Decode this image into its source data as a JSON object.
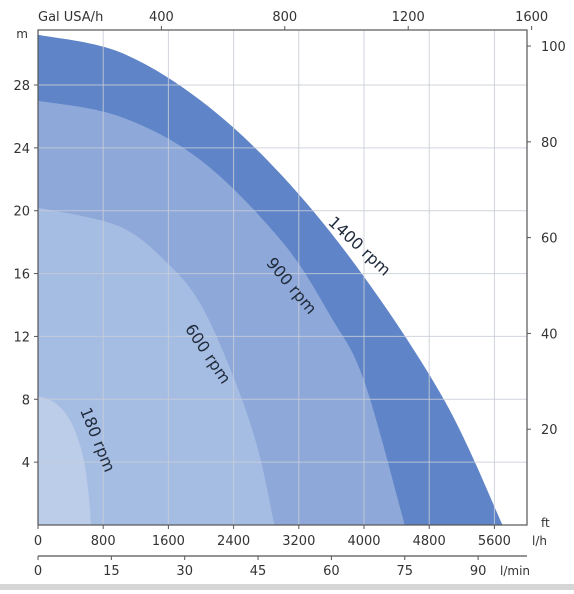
{
  "chart_data": {
    "type": "area",
    "x_primary": {
      "unit": "l/h",
      "ticks": [
        0,
        800,
        1600,
        2400,
        3200,
        4000,
        4800,
        5600
      ],
      "range": [
        0,
        6000
      ]
    },
    "x_secondary": {
      "unit": "l/min",
      "ticks": [
        0,
        15,
        30,
        45,
        60,
        75,
        90
      ]
    },
    "x_top": {
      "unit": "Gal USA/h",
      "ticks": [
        400,
        800,
        1200,
        1600
      ]
    },
    "y_left": {
      "unit": "m",
      "ticks": [
        4,
        8,
        12,
        16,
        20,
        24,
        28
      ],
      "range": [
        0,
        31.5
      ]
    },
    "y_right": {
      "unit": "ft",
      "ticks": [
        20,
        40,
        60,
        80,
        100
      ]
    },
    "grid": true,
    "series": [
      {
        "name": "1400 rpm",
        "color": "#5f84c7",
        "points": [
          [
            0,
            31.2
          ],
          [
            1000,
            30.1
          ],
          [
            2000,
            27.0
          ],
          [
            3000,
            22.2
          ],
          [
            4000,
            15.8
          ],
          [
            5000,
            7.8
          ],
          [
            5700,
            0
          ]
        ]
      },
      {
        "name": "900 rpm",
        "color": "#8ea8d9",
        "points": [
          [
            0,
            27.0
          ],
          [
            1000,
            26.0
          ],
          [
            2000,
            23.2
          ],
          [
            3000,
            18.0
          ],
          [
            3600,
            13.2
          ],
          [
            4000,
            9.2
          ],
          [
            4500,
            0
          ]
        ]
      },
      {
        "name": "600 rpm",
        "color": "#a6bde3",
        "points": [
          [
            0,
            20.2
          ],
          [
            1000,
            19.0
          ],
          [
            1600,
            16.6
          ],
          [
            2000,
            14.0
          ],
          [
            2400,
            9.4
          ],
          [
            2700,
            4.8
          ],
          [
            2900,
            0
          ]
        ]
      },
      {
        "name": "180 rpm",
        "color": "#bccde9",
        "points": [
          [
            0,
            8.2
          ],
          [
            200,
            7.8
          ],
          [
            400,
            6.6
          ],
          [
            550,
            4.4
          ],
          [
            620,
            2.0
          ],
          [
            650,
            0
          ]
        ]
      }
    ]
  }
}
